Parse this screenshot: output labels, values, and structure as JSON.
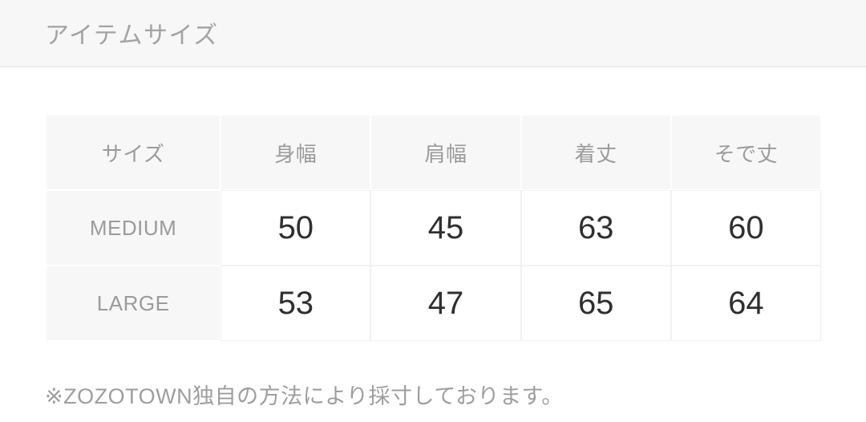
{
  "header": {
    "title": "アイテムサイズ"
  },
  "size_table": {
    "columns": [
      "サイズ",
      "身幅",
      "肩幅",
      "着丈",
      "そで丈"
    ],
    "rows": [
      {
        "size": "MEDIUM",
        "values": [
          "50",
          "45",
          "63",
          "60"
        ]
      },
      {
        "size": "LARGE",
        "values": [
          "53",
          "47",
          "65",
          "64"
        ]
      }
    ]
  },
  "note": {
    "text": "※ZOZOTOWN独自の方法により採寸しております。"
  },
  "colors": {
    "topbar_bg": "#f7f7f7",
    "topbar_border": "#ededed",
    "gray_cell_bg": "#f7f7f7",
    "grid_line": "#f1f1f1",
    "muted_text": "#9b9b9b",
    "title_text": "#a3a3a3",
    "value_text": "#2f2f2f"
  }
}
